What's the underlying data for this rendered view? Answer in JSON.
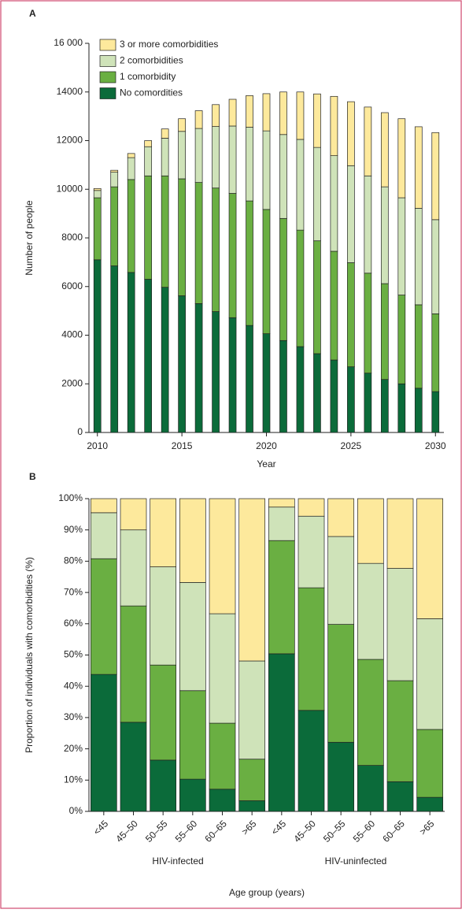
{
  "chart_data": [
    {
      "type": "bar",
      "stacked": true,
      "title": "A",
      "xlabel": "Year",
      "ylabel": "Number of people",
      "x": [
        2010,
        2011,
        2012,
        2013,
        2014,
        2015,
        2016,
        2017,
        2018,
        2019,
        2020,
        2021,
        2022,
        2023,
        2024,
        2025,
        2026,
        2027,
        2028,
        2029,
        2030
      ],
      "xlim": [
        2009.5,
        2030.5
      ],
      "xticks": [
        2010,
        2015,
        2020,
        2025,
        2030
      ],
      "ylim": [
        0,
        16000
      ],
      "yticks": [
        0,
        2000,
        4000,
        6000,
        8000,
        10000,
        12000,
        14000,
        {
          "value": 16000,
          "label": "16 000"
        }
      ],
      "legend": "upper left",
      "grid": false,
      "series": [
        {
          "name": "No comordities",
          "color": "#0b6b3a",
          "values": [
            7100,
            6850,
            6580,
            6300,
            5970,
            5620,
            5300,
            4970,
            4720,
            4400,
            4060,
            3780,
            3530,
            3240,
            2980,
            2700,
            2440,
            2180,
            2000,
            1820,
            1680
          ]
        },
        {
          "name": "1 comorbidity",
          "color": "#6aaf42",
          "values": [
            2550,
            3250,
            3820,
            4250,
            4580,
            4810,
            4980,
            5080,
            5110,
            5120,
            5110,
            5020,
            4790,
            4640,
            4470,
            4280,
            4110,
            3940,
            3650,
            3430,
            3200
          ]
        },
        {
          "name": "2 comorbidities",
          "color": "#cfe3b9",
          "values": [
            300,
            600,
            900,
            1200,
            1550,
            1950,
            2220,
            2530,
            2770,
            3030,
            3230,
            3450,
            3730,
            3840,
            3930,
            3990,
            4000,
            3980,
            4000,
            3970,
            3870
          ]
        },
        {
          "name": "3 or more comorbidities",
          "color": "#fde99c",
          "values": [
            80,
            80,
            170,
            250,
            380,
            520,
            730,
            900,
            1100,
            1300,
            1530,
            1750,
            1950,
            2200,
            2440,
            2630,
            2830,
            3050,
            3250,
            3350,
            3580
          ]
        }
      ]
    },
    {
      "type": "bar",
      "stacked": true,
      "title": "B",
      "xlabel": "Age group (years)",
      "ylabel": "Proportion of individuals with comorbidities (%)",
      "categories": [
        "<45",
        "45–50",
        "50–55",
        "55–60",
        "60–65",
        ">65",
        "<45",
        "45–50",
        "50–55",
        "55–60",
        "60–65",
        ">65"
      ],
      "groups": [
        "HIV-infected",
        "HIV-uninfected"
      ],
      "ylim": [
        0,
        100
      ],
      "yticks": [
        {
          "value": 0,
          "label": "0%"
        },
        {
          "value": 10,
          "label": "10%"
        },
        {
          "value": 20,
          "label": "20%"
        },
        {
          "value": 30,
          "label": "30%"
        },
        {
          "value": 40,
          "label": "40%"
        },
        {
          "value": 50,
          "label": "50%"
        },
        {
          "value": 60,
          "label": "60%"
        },
        {
          "value": 70,
          "label": "70%"
        },
        {
          "value": 80,
          "label": "80%"
        },
        {
          "value": 90,
          "label": "90%"
        },
        {
          "value": 100,
          "label": "100%"
        }
      ],
      "grid": false,
      "series": [
        {
          "color": "#0b6b3a",
          "values": [
            43.8,
            28.5,
            16.4,
            10.3,
            7.1,
            3.4,
            50.4,
            32.3,
            22.1,
            14.7,
            9.5,
            4.5
          ]
        },
        {
          "color": "#6aaf42",
          "values": [
            37.0,
            37.2,
            30.4,
            28.3,
            21.1,
            13.3,
            36.2,
            39.2,
            37.7,
            33.9,
            32.3,
            21.7
          ]
        },
        {
          "color": "#cfe3b9",
          "values": [
            14.7,
            24.3,
            31.4,
            34.6,
            35.0,
            31.4,
            10.7,
            22.9,
            28.1,
            30.7,
            35.9,
            35.4
          ]
        },
        {
          "color": "#fde99c",
          "values": [
            4.5,
            10.0,
            21.8,
            26.8,
            36.8,
            51.9,
            2.7,
            5.6,
            12.1,
            20.7,
            22.3,
            38.4
          ]
        }
      ]
    }
  ]
}
